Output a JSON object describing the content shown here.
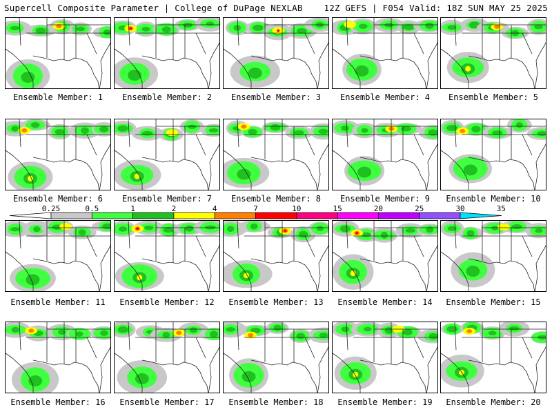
{
  "header": {
    "title": "Supercell Composite Parameter | College of DuPage NEXLAB",
    "valid": "12Z GEFS | F054 Valid: 18Z SUN MAY 25 2025"
  },
  "member_label_prefix": "Ensemble Member:",
  "members": [
    {
      "id": "1",
      "label": "Ensemble Member: 1"
    },
    {
      "id": "2",
      "label": "Ensemble Member: 2"
    },
    {
      "id": "3",
      "label": "Ensemble Member: 3"
    },
    {
      "id": "4",
      "label": "Ensemble Member: 4"
    },
    {
      "id": "5",
      "label": "Ensemble Member: 5"
    },
    {
      "id": "6",
      "label": "Ensemble Member: 6"
    },
    {
      "id": "7",
      "label": "Ensemble Member: 7"
    },
    {
      "id": "8",
      "label": "Ensemble Member: 8"
    },
    {
      "id": "9",
      "label": "Ensemble Member: 9"
    },
    {
      "id": "10",
      "label": "Ensemble Member: 10"
    },
    {
      "id": "11",
      "label": "Ensemble Member: 11"
    },
    {
      "id": "12",
      "label": "Ensemble Member: 12"
    },
    {
      "id": "13",
      "label": "Ensemble Member: 13"
    },
    {
      "id": "14",
      "label": "Ensemble Member: 14"
    },
    {
      "id": "15",
      "label": "Ensemble Member: 15"
    },
    {
      "id": "16",
      "label": "Ensemble Member: 16"
    },
    {
      "id": "17",
      "label": "Ensemble Member: 17"
    },
    {
      "id": "18",
      "label": "Ensemble Member: 18"
    },
    {
      "id": "19",
      "label": "Ensemble Member: 19"
    },
    {
      "id": "20",
      "label": "Ensemble Member: 20"
    }
  ],
  "colorbar": {
    "ticks": [
      "0.25",
      "0.5",
      "1",
      "2",
      "4",
      "7",
      "10",
      "15",
      "20",
      "25",
      "30",
      "35"
    ],
    "colors": [
      "#c8c8c8",
      "#40ff40",
      "#20c020",
      "#ffff00",
      "#ff8000",
      "#ff0000",
      "#ff0080",
      "#ff00ff",
      "#c000ff",
      "#9050ff",
      "#00e0ff"
    ]
  }
}
